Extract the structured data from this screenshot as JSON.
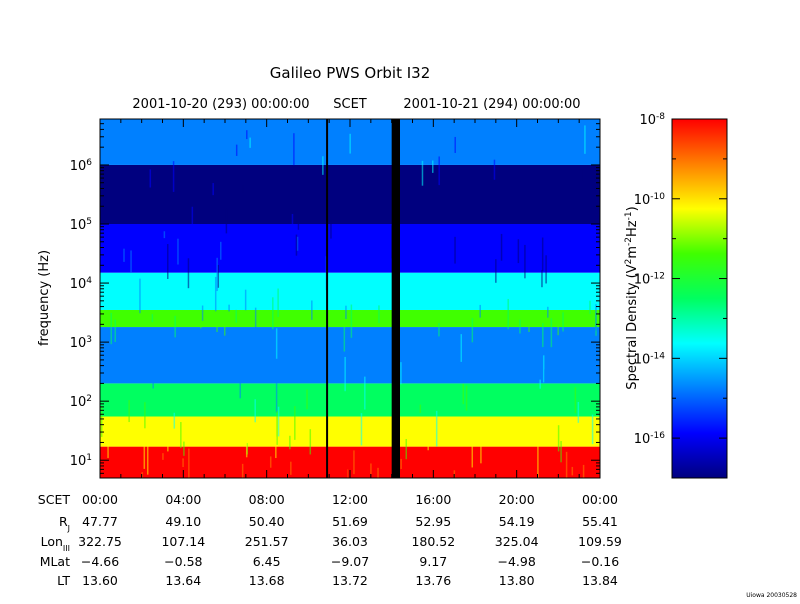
{
  "chart_data": {
    "type": "heatmap",
    "title": "Galileo PWS Orbit I32",
    "header": {
      "left_time": "2001-10-20 (293) 00:00:00",
      "center_label": "SCET",
      "right_time": "2001-10-21 (294) 00:00:00"
    },
    "ylabel": "frequency (Hz)",
    "y_scale": "log",
    "ylim": [
      5,
      6000000
    ],
    "y_ticks": [
      {
        "value": 10,
        "base": "10",
        "exp": "1"
      },
      {
        "value": 100,
        "base": "10",
        "exp": "2"
      },
      {
        "value": 1000,
        "base": "10",
        "exp": "3"
      },
      {
        "value": 10000,
        "base": "10",
        "exp": "4"
      },
      {
        "value": 100000,
        "base": "10",
        "exp": "5"
      },
      {
        "value": 1000000,
        "base": "10",
        "exp": "6"
      }
    ],
    "x_unit": "hours SCET",
    "xlim": [
      0,
      24
    ],
    "x_ticks": [
      0,
      4,
      8,
      12,
      16,
      20,
      24
    ],
    "data_gap_hours": [
      14.0,
      14.4
    ],
    "marker_line_hour": 10.9,
    "colorbar": {
      "label_main": "Spectral Density (V",
      "label_sup1": "2",
      "label_mid": "m",
      "label_sup2": "-2",
      "label_end": "Hz",
      "label_sup3": "-1",
      "label_close": ")",
      "scale": "log",
      "range": [
        1e-17,
        1e-08
      ],
      "ticks": [
        {
          "value": 1e-08,
          "base": "10",
          "exp": "-8"
        },
        {
          "value": 1e-10,
          "base": "10",
          "exp": "-10"
        },
        {
          "value": 1e-12,
          "base": "10",
          "exp": "-12"
        },
        {
          "value": 1e-14,
          "base": "10",
          "exp": "-14"
        },
        {
          "value": 1e-16,
          "base": "10",
          "exp": "-16"
        }
      ],
      "colormap": [
        "#00007f",
        "#0000ff",
        "#0080ff",
        "#00ffff",
        "#00ff60",
        "#40ff00",
        "#ffff00",
        "#ff8000",
        "#ff0000"
      ]
    },
    "bands": [
      {
        "f_lo": 5,
        "f_hi": 17,
        "log_density": -8.3
      },
      {
        "f_lo": 17,
        "f_hi": 55,
        "log_density": -10.8
      },
      {
        "f_lo": 55,
        "f_hi": 200,
        "log_density": -12.7
      },
      {
        "f_lo": 200,
        "f_hi": 1800,
        "log_density": -14.2
      },
      {
        "f_lo": 1800,
        "f_hi": 3500,
        "log_density": -11.8
      },
      {
        "f_lo": 3500,
        "f_hi": 15000,
        "log_density": -13.6
      },
      {
        "f_lo": 15000,
        "f_hi": 100000,
        "log_density": -16.2
      },
      {
        "f_lo": 100000,
        "f_hi": 1000000,
        "log_density": -16.9
      },
      {
        "f_lo": 1000000,
        "f_hi": 6000000,
        "log_density": -15.0
      }
    ],
    "ephemeris": {
      "rows": [
        {
          "label": "SCET",
          "sub": "",
          "values": [
            "00:00",
            "04:00",
            "08:00",
            "12:00",
            "16:00",
            "20:00",
            "00:00"
          ]
        },
        {
          "label": "R",
          "sub": "J",
          "values": [
            "47.77",
            "49.10",
            "50.40",
            "51.69",
            "52.95",
            "54.19",
            "55.41"
          ]
        },
        {
          "label": "Lon",
          "sub": "III",
          "values": [
            "322.75",
            "107.14",
            "251.57",
            "36.03",
            "180.52",
            "325.04",
            "109.59"
          ]
        },
        {
          "label": "MLat",
          "sub": "",
          "values": [
            "−4.66",
            "−0.58",
            "6.45",
            "−9.07",
            "9.17",
            "−4.98",
            "−0.16"
          ]
        },
        {
          "label": "LT",
          "sub": "",
          "values": [
            "13.60",
            "13.64",
            "13.68",
            "13.72",
            "13.76",
            "13.80",
            "13.84"
          ]
        }
      ]
    },
    "credit": "Uiowa 20030528"
  }
}
